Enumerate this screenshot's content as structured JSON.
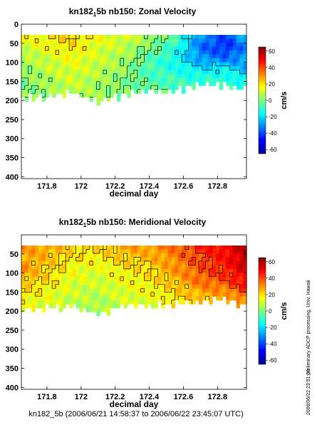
{
  "figure": {
    "side_note": "preliminary ADCP processing,  Univ. Hawaii",
    "side_stamp": "2006/06/22 23:51:08",
    "footer": "kn182_5b (2006/06/21 14:58:37 to 2006/06/22 23:45:07 UTC)"
  },
  "chart_data": [
    {
      "type": "heatmap",
      "title": "kn182_5b nb150: Zonal Velocity",
      "title_parts": {
        "pre": "kn182",
        "sub": "1",
        "post": "5b nb150: Zonal Velocity"
      },
      "xlabel": "decimal day",
      "ylabel": "",
      "xlim": [
        171.65,
        172.97
      ],
      "ylim": [
        405,
        0
      ],
      "x_ticks": [
        171.8,
        172,
        172.2,
        172.4,
        172.6,
        172.8
      ],
      "x_tick_labels": [
        "171.8",
        "172",
        "172.2",
        "172.4",
        "172.6",
        "172.8"
      ],
      "y_ticks": [
        0,
        50,
        100,
        150,
        200,
        250,
        300,
        350,
        400
      ],
      "y_tick_labels": [
        "0",
        "50",
        "100",
        "150",
        "200",
        "250",
        "300",
        "350",
        "400"
      ],
      "y_reversed": true,
      "colorbar": {
        "label": "cm/s",
        "range": [
          -65,
          65
        ],
        "ticks": [
          60,
          40,
          20,
          0,
          -20,
          -40,
          -60
        ],
        "tick_labels": [
          "60",
          "40",
          "20",
          "0",
          "-20",
          "-40",
          "-60"
        ]
      },
      "time_nodes": [
        171.65,
        171.8,
        171.95,
        172.1,
        172.25,
        172.4,
        172.55,
        172.7,
        172.85,
        172.97
      ],
      "depth_nodes": [
        30,
        60,
        90,
        120,
        150,
        180
      ],
      "values": [
        [
          15,
          18,
          22,
          15,
          12,
          5,
          -5,
          -30,
          -40,
          -25
        ],
        [
          10,
          15,
          18,
          12,
          8,
          0,
          -10,
          -35,
          -45,
          -30
        ],
        [
          5,
          10,
          15,
          10,
          5,
          -5,
          -15,
          -30,
          -35,
          -30
        ],
        [
          2,
          8,
          12,
          8,
          3,
          -8,
          -12,
          -18,
          -15,
          -25
        ],
        [
          0,
          5,
          10,
          5,
          0,
          -5,
          -8,
          -10,
          -10,
          -15
        ],
        [
          0,
          3,
          8,
          4,
          0,
          -3,
          -5,
          -8,
          -8,
          -10
        ]
      ],
      "bottom_depth": [
        195,
        190,
        180,
        205,
        185,
        178,
        175,
        160,
        158,
        175
      ]
    },
    {
      "type": "heatmap",
      "title": "kn182_5b nb150: Meridional Velocity",
      "title_parts": {
        "pre": "kn182",
        "sub": "1",
        "post": "5b nb150: Meridional Velocity"
      },
      "xlabel": "decimal day",
      "ylabel": "",
      "xlim": [
        171.65,
        172.97
      ],
      "ylim": [
        405,
        0
      ],
      "x_ticks": [
        171.8,
        172,
        172.2,
        172.4,
        172.6,
        172.8
      ],
      "x_tick_labels": [
        "171.8",
        "172",
        "172.2",
        "172.4",
        "172.6",
        "172.8"
      ],
      "y_ticks": [
        50,
        100,
        150,
        200,
        250,
        300,
        350,
        400
      ],
      "y_tick_labels": [
        "50",
        "100",
        "150",
        "200",
        "250",
        "300",
        "350",
        "400"
      ],
      "y_reversed": true,
      "colorbar": {
        "label": "cm/s",
        "range": [
          -65,
          65
        ],
        "ticks": [
          60,
          40,
          20,
          0,
          -20,
          -40,
          -60
        ],
        "tick_labels": [
          "60",
          "40",
          "20",
          "0",
          "-20",
          "-40",
          "-60"
        ]
      },
      "time_nodes": [
        171.65,
        171.8,
        171.95,
        172.1,
        172.25,
        172.4,
        172.55,
        172.7,
        172.85,
        172.97
      ],
      "depth_nodes": [
        30,
        60,
        90,
        120,
        150,
        180
      ],
      "values": [
        [
          30,
          28,
          22,
          20,
          28,
          30,
          35,
          45,
          50,
          60
        ],
        [
          28,
          25,
          18,
          18,
          22,
          25,
          32,
          40,
          48,
          58
        ],
        [
          30,
          22,
          15,
          12,
          18,
          20,
          30,
          38,
          45,
          55
        ],
        [
          25,
          20,
          12,
          10,
          15,
          18,
          25,
          35,
          40,
          50
        ],
        [
          20,
          15,
          10,
          8,
          12,
          15,
          20,
          28,
          30,
          40
        ],
        [
          15,
          12,
          8,
          5,
          10,
          12,
          18,
          22,
          25,
          30
        ]
      ],
      "bottom_depth": [
        195,
        192,
        188,
        210,
        185,
        185,
        180,
        175,
        170,
        185
      ]
    }
  ]
}
